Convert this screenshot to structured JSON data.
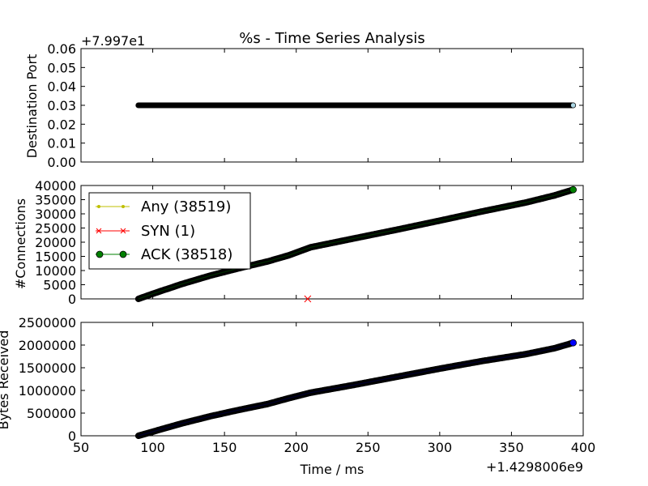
{
  "chart_data": [
    {
      "type": "scatter",
      "title": "%s - Time Series Analysis",
      "ylabel": "Destination Port",
      "offset_label": "+7.997e1",
      "xlim": [
        50,
        400
      ],
      "ylim": [
        0,
        0.06
      ],
      "yticks": [
        0.0,
        0.01,
        0.02,
        0.03,
        0.04,
        0.05,
        0.06
      ],
      "ytick_labels": [
        "0.00",
        "0.01",
        "0.02",
        "0.03",
        "0.04",
        "0.05",
        "0.06"
      ],
      "series": [
        {
          "color": "#000000",
          "x_range": [
            90,
            393
          ],
          "y_const": 0.03,
          "end_marker_color": "#add8e6"
        }
      ]
    },
    {
      "type": "line",
      "ylabel": "#Connections",
      "xlim": [
        50,
        400
      ],
      "ylim": [
        0,
        40000
      ],
      "yticks": [
        0,
        5000,
        10000,
        15000,
        20000,
        25000,
        30000,
        35000,
        40000
      ],
      "ytick_labels": [
        "0",
        "5000",
        "10000",
        "15000",
        "20000",
        "25000",
        "30000",
        "35000",
        "40000"
      ],
      "legend_position": "upper-left",
      "series": [
        {
          "name": "Any (38519)",
          "color": "#bfbf00",
          "marker": "point"
        },
        {
          "name": "SYN (1)",
          "color": "#ff0000",
          "marker": "x",
          "points": [
            [
              208,
              0
            ]
          ]
        },
        {
          "name": "ACK (38518)",
          "color": "#008000",
          "marker": "circle",
          "x": [
            90,
            100,
            120,
            140,
            160,
            180,
            195,
            210,
            240,
            270,
            300,
            330,
            360,
            380,
            393
          ],
          "y": [
            0,
            1800,
            5200,
            8200,
            10800,
            13200,
            15400,
            18200,
            21300,
            24400,
            27600,
            30900,
            34000,
            36500,
            38519
          ]
        }
      ]
    },
    {
      "type": "line",
      "ylabel": "Bytes Received",
      "xlabel": "Time / ms",
      "x_offset_label": "+1.4298006e9",
      "xlim": [
        50,
        400
      ],
      "ylim": [
        0,
        2500000
      ],
      "xticks": [
        50,
        100,
        150,
        200,
        250,
        300,
        350,
        400
      ],
      "xtick_labels": [
        "50",
        "100",
        "150",
        "200",
        "250",
        "300",
        "350",
        "400"
      ],
      "yticks": [
        0,
        500000,
        1000000,
        1500000,
        2000000,
        2500000
      ],
      "ytick_labels": [
        "0",
        "500000",
        "1000000",
        "1500000",
        "2000000",
        "2500000"
      ],
      "series": [
        {
          "color": "#000080",
          "x": [
            90,
            100,
            120,
            140,
            160,
            180,
            195,
            210,
            240,
            270,
            300,
            330,
            360,
            380,
            393
          ],
          "y": [
            0,
            90000,
            270000,
            430000,
            570000,
            700000,
            830000,
            950000,
            1120000,
            1300000,
            1480000,
            1650000,
            1800000,
            1930000,
            2050000
          ],
          "end_marker_color": "#0000ff"
        }
      ]
    }
  ]
}
